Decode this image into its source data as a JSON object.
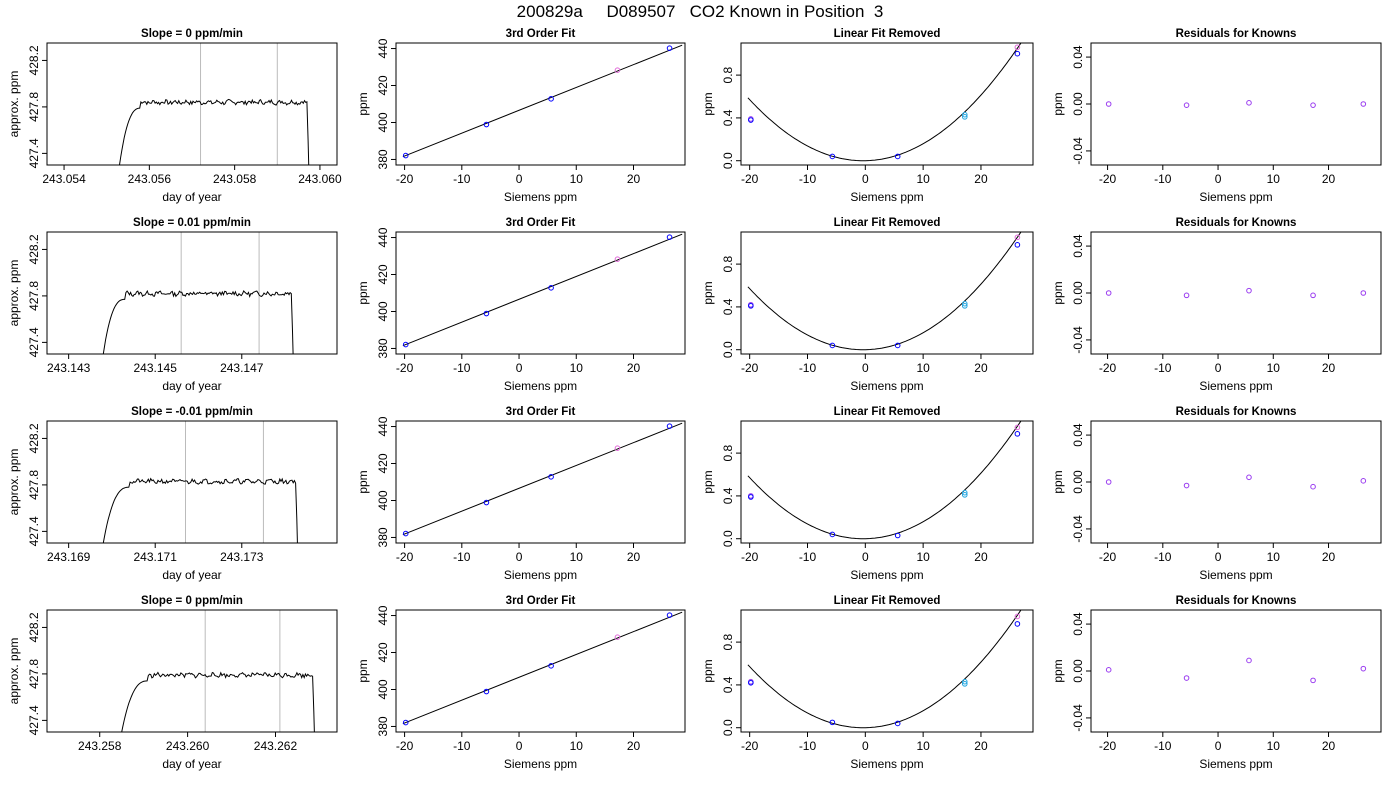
{
  "figure_title": "200829a     D089507   CO2 Known in Position  3",
  "colors": {
    "axis": "#000000",
    "trace": "#000000",
    "vline": "#bbbbbb",
    "point_blue": "#0000ff",
    "point_violet": "#9a3cf0",
    "point_cyan": "#22a6e0",
    "point_pink": "#e06ad8"
  },
  "chart_data": [
    {
      "row": 1,
      "type": "line",
      "title": "Slope =  0  ppm/min",
      "xlabel": "day of year",
      "ylabel": "approx. ppm",
      "xlim": [
        243.0536,
        243.0604
      ],
      "ylim": [
        427.3,
        428.35
      ],
      "xticks": [
        243.054,
        243.056,
        243.058,
        243.06
      ],
      "yticks": [
        427.4,
        427.8,
        428.2
      ],
      "xtick_labels": [
        "243.054",
        "243.056",
        "243.058",
        "243.060"
      ],
      "ytick_labels": [
        "427.4",
        "427.8",
        "428.2"
      ],
      "vlines": [
        243.0572,
        243.059
      ],
      "trace": {
        "x_start": 243.0553,
        "x_rise_end": 243.0558,
        "x_fall": 243.0597,
        "x_end": 243.05975,
        "plateau": 427.84,
        "y_low": 427.3,
        "seed": 7
      }
    },
    {
      "row": 1,
      "type": "scatter",
      "title": "3rd Order Fit",
      "xlabel": "Siemens ppm",
      "ylabel": "ppm",
      "xlim": [
        -21.5,
        29
      ],
      "ylim": [
        377,
        443
      ],
      "xticks": [
        -20,
        -10,
        0,
        10,
        20
      ],
      "yticks": [
        380,
        400,
        420,
        440
      ],
      "xtick_labels": [
        "-20",
        "-10",
        "0",
        "10",
        "20"
      ],
      "ytick_labels": [
        "380",
        "400",
        "420",
        "440"
      ],
      "x": [
        -19.8,
        -5.7,
        5.6,
        17.2,
        26.3
      ],
      "y": [
        382.1,
        398.9,
        412.8,
        428.3,
        440.2
      ],
      "point_colors": [
        "blue",
        "blue",
        "blue",
        "pink",
        "blue"
      ],
      "fit_line": [
        [
          -20.3,
          381.5
        ],
        [
          28.5,
          441.8
        ]
      ]
    },
    {
      "row": 1,
      "type": "scatter",
      "title": "Linear Fit Removed",
      "xlabel": "Siemens ppm",
      "ylabel": "ppm",
      "xlim": [
        -21.5,
        29
      ],
      "ylim": [
        -0.04,
        1.1
      ],
      "xticks": [
        -20,
        -10,
        0,
        10,
        20
      ],
      "yticks": [
        0.0,
        0.4,
        0.8
      ],
      "xtick_labels": [
        "-20",
        "-10",
        "0",
        "10",
        "20"
      ],
      "ytick_labels": [
        "0.0",
        "0.4",
        "0.8"
      ],
      "x": [
        -19.8,
        -19.8,
        -5.7,
        5.6,
        17.2,
        17.2,
        26.3,
        26.3
      ],
      "y": [
        0.39,
        0.38,
        0.04,
        0.04,
        0.43,
        0.41,
        1.06,
        1.0
      ],
      "point_colors": [
        "violet",
        "blue",
        "blue",
        "blue",
        "cyan",
        "cyan",
        "pink",
        "blue"
      ],
      "curve": {
        "a": 0.00148,
        "b": 0.00106,
        "c": 0.0
      }
    },
    {
      "row": 1,
      "type": "scatter",
      "title": "Residuals for Knowns",
      "xlabel": "Siemens ppm",
      "ylabel": "ppm",
      "xlim": [
        -23,
        29.5
      ],
      "ylim": [
        -0.052,
        0.052
      ],
      "xticks": [
        -20,
        -10,
        0,
        10,
        20
      ],
      "yticks": [
        -0.04,
        0.0,
        0.04
      ],
      "xtick_labels": [
        "-20",
        "-10",
        "0",
        "10",
        "20"
      ],
      "ytick_labels": [
        "-0.04",
        "0.00",
        "0.04"
      ],
      "x": [
        -19.8,
        -5.7,
        5.6,
        17.2,
        26.3
      ],
      "y": [
        0.0,
        -0.001,
        0.001,
        -0.001,
        0.0
      ],
      "point_colors": [
        "violet",
        "violet",
        "violet",
        "violet",
        "violet"
      ]
    },
    {
      "row": 2,
      "type": "line",
      "title": "Slope =  0.01  ppm/min",
      "xlabel": "day of year",
      "ylabel": "approx. ppm",
      "xlim": [
        243.1425,
        243.1492
      ],
      "ylim": [
        427.3,
        428.35
      ],
      "xticks": [
        243.143,
        243.145,
        243.147
      ],
      "yticks": [
        427.4,
        427.8,
        428.2
      ],
      "xtick_labels": [
        "243.143",
        "243.145",
        "243.147"
      ],
      "ytick_labels": [
        "427.4",
        "427.8",
        "428.2"
      ],
      "vlines": [
        243.1456,
        243.1474
      ],
      "trace": {
        "x_start": 243.1438,
        "x_rise_end": 243.1443,
        "x_fall": 243.14815,
        "x_end": 243.1482,
        "plateau": 427.82,
        "y_low": 427.3,
        "seed": 13
      }
    },
    {
      "row": 2,
      "type": "scatter",
      "title": "3rd Order Fit",
      "xlabel": "Siemens ppm",
      "ylabel": "ppm",
      "xlim": [
        -21.5,
        29
      ],
      "ylim": [
        377,
        443
      ],
      "xticks": [
        -20,
        -10,
        0,
        10,
        20
      ],
      "yticks": [
        380,
        400,
        420,
        440
      ],
      "xtick_labels": [
        "-20",
        "-10",
        "0",
        "10",
        "20"
      ],
      "ytick_labels": [
        "380",
        "400",
        "420",
        "440"
      ],
      "x": [
        -19.8,
        -5.7,
        5.6,
        17.2,
        26.3
      ],
      "y": [
        382.1,
        398.9,
        412.8,
        428.3,
        440.2
      ],
      "point_colors": [
        "blue",
        "blue",
        "blue",
        "pink",
        "blue"
      ],
      "fit_line": [
        [
          -20.3,
          381.5
        ],
        [
          28.5,
          441.8
        ]
      ]
    },
    {
      "row": 2,
      "type": "scatter",
      "title": "Linear Fit Removed",
      "xlabel": "Siemens ppm",
      "ylabel": "ppm",
      "xlim": [
        -21.5,
        29
      ],
      "ylim": [
        -0.04,
        1.1
      ],
      "xticks": [
        -20,
        -10,
        0,
        10,
        20
      ],
      "yticks": [
        0.0,
        0.4,
        0.8
      ],
      "xtick_labels": [
        "-20",
        "-10",
        "0",
        "10",
        "20"
      ],
      "ytick_labels": [
        "0.0",
        "0.4",
        "0.8"
      ],
      "x": [
        -19.8,
        -19.8,
        -5.7,
        5.6,
        17.2,
        17.2,
        26.3,
        26.3
      ],
      "y": [
        0.42,
        0.41,
        0.04,
        0.04,
        0.43,
        0.41,
        1.05,
        0.98
      ],
      "point_colors": [
        "violet",
        "blue",
        "blue",
        "blue",
        "cyan",
        "cyan",
        "pink",
        "blue"
      ],
      "curve": {
        "a": 0.00148,
        "b": 0.00106,
        "c": 0.0
      }
    },
    {
      "row": 2,
      "type": "scatter",
      "title": "Residuals for Knowns",
      "xlabel": "Siemens ppm",
      "ylabel": "ppm",
      "xlim": [
        -23,
        29.5
      ],
      "ylim": [
        -0.052,
        0.052
      ],
      "xticks": [
        -20,
        -10,
        0,
        10,
        20
      ],
      "yticks": [
        -0.04,
        0.0,
        0.04
      ],
      "xtick_labels": [
        "-20",
        "-10",
        "0",
        "10",
        "20"
      ],
      "ytick_labels": [
        "-0.04",
        "0.00",
        "0.04"
      ],
      "x": [
        -19.8,
        -5.7,
        5.6,
        17.2,
        26.3
      ],
      "y": [
        0.0,
        -0.002,
        0.002,
        -0.002,
        0.0
      ],
      "point_colors": [
        "violet",
        "violet",
        "violet",
        "violet",
        "violet"
      ]
    },
    {
      "row": 3,
      "type": "line",
      "title": "Slope =  -0.01  ppm/min",
      "xlabel": "day of year",
      "ylabel": "approx. ppm",
      "xlim": [
        243.1685,
        243.1752
      ],
      "ylim": [
        427.3,
        428.35
      ],
      "xticks": [
        243.169,
        243.171,
        243.173
      ],
      "yticks": [
        427.4,
        427.8,
        428.2
      ],
      "xtick_labels": [
        "243.169",
        "243.171",
        "243.173"
      ],
      "ytick_labels": [
        "427.4",
        "427.8",
        "428.2"
      ],
      "vlines": [
        243.1717,
        243.1735
      ],
      "trace": {
        "x_start": 243.1698,
        "x_rise_end": 243.1704,
        "x_fall": 243.17425,
        "x_end": 243.1743,
        "plateau": 427.83,
        "y_low": 427.3,
        "seed": 21
      }
    },
    {
      "row": 3,
      "type": "scatter",
      "title": "3rd Order Fit",
      "xlabel": "Siemens ppm",
      "ylabel": "ppm",
      "xlim": [
        -21.5,
        29
      ],
      "ylim": [
        377,
        443
      ],
      "xticks": [
        -20,
        -10,
        0,
        10,
        20
      ],
      "yticks": [
        380,
        400,
        420,
        440
      ],
      "xtick_labels": [
        "-20",
        "-10",
        "0",
        "10",
        "20"
      ],
      "ytick_labels": [
        "380",
        "400",
        "420",
        "440"
      ],
      "x": [
        -19.8,
        -5.7,
        5.6,
        17.2,
        26.3
      ],
      "y": [
        382.1,
        398.9,
        412.8,
        428.3,
        440.2
      ],
      "point_colors": [
        "blue",
        "blue",
        "blue",
        "pink",
        "blue"
      ],
      "fit_line": [
        [
          -20.3,
          381.5
        ],
        [
          28.5,
          441.8
        ]
      ]
    },
    {
      "row": 3,
      "type": "scatter",
      "title": "Linear Fit Removed",
      "xlabel": "Siemens ppm",
      "ylabel": "ppm",
      "xlim": [
        -21.5,
        29
      ],
      "ylim": [
        -0.04,
        1.1
      ],
      "xticks": [
        -20,
        -10,
        0,
        10,
        20
      ],
      "yticks": [
        0.0,
        0.4,
        0.8
      ],
      "xtick_labels": [
        "-20",
        "-10",
        "0",
        "10",
        "20"
      ],
      "ytick_labels": [
        "0.0",
        "0.4",
        "0.8"
      ],
      "x": [
        -19.8,
        -19.8,
        -5.7,
        5.6,
        17.2,
        17.2,
        26.3,
        26.3
      ],
      "y": [
        0.4,
        0.39,
        0.04,
        0.03,
        0.43,
        0.41,
        1.04,
        0.98
      ],
      "point_colors": [
        "violet",
        "blue",
        "blue",
        "blue",
        "cyan",
        "cyan",
        "pink",
        "blue"
      ],
      "curve": {
        "a": 0.00148,
        "b": 0.00106,
        "c": 0.0
      }
    },
    {
      "row": 3,
      "type": "scatter",
      "title": "Residuals for Knowns",
      "xlabel": "Siemens ppm",
      "ylabel": "ppm",
      "xlim": [
        -23,
        29.5
      ],
      "ylim": [
        -0.052,
        0.052
      ],
      "xticks": [
        -20,
        -10,
        0,
        10,
        20
      ],
      "yticks": [
        -0.04,
        0.0,
        0.04
      ],
      "xtick_labels": [
        "-20",
        "-10",
        "0",
        "10",
        "20"
      ],
      "ytick_labels": [
        "-0.04",
        "0.00",
        "0.04"
      ],
      "x": [
        -19.8,
        -5.7,
        5.6,
        17.2,
        26.3
      ],
      "y": [
        0.0,
        -0.003,
        0.004,
        -0.004,
        0.001
      ],
      "point_colors": [
        "violet",
        "violet",
        "violet",
        "violet",
        "violet"
      ]
    },
    {
      "row": 4,
      "type": "line",
      "title": "Slope =  0  ppm/min",
      "xlabel": "day of year",
      "ylabel": "approx. ppm",
      "xlim": [
        243.2568,
        243.2634
      ],
      "ylim": [
        427.3,
        428.35
      ],
      "xticks": [
        243.258,
        243.26,
        243.262
      ],
      "yticks": [
        427.4,
        427.8,
        428.2
      ],
      "xtick_labels": [
        "243.258",
        "243.260",
        "243.262"
      ],
      "ytick_labels": [
        "427.4",
        "427.8",
        "428.2"
      ],
      "vlines": [
        243.2604,
        243.2621
      ],
      "trace": {
        "x_start": 243.2585,
        "x_rise_end": 243.2591,
        "x_fall": 243.26285,
        "x_end": 243.2629,
        "plateau": 427.79,
        "y_low": 427.3,
        "seed": 33
      }
    },
    {
      "row": 4,
      "type": "scatter",
      "title": "3rd Order Fit",
      "xlabel": "Siemens ppm",
      "ylabel": "ppm",
      "xlim": [
        -21.5,
        29
      ],
      "ylim": [
        377,
        443
      ],
      "xticks": [
        -20,
        -10,
        0,
        10,
        20
      ],
      "yticks": [
        380,
        400,
        420,
        440
      ],
      "xtick_labels": [
        "-20",
        "-10",
        "0",
        "10",
        "20"
      ],
      "ytick_labels": [
        "380",
        "400",
        "420",
        "440"
      ],
      "x": [
        -19.8,
        -5.7,
        5.6,
        17.2,
        26.3
      ],
      "y": [
        382.1,
        398.9,
        412.8,
        428.3,
        440.2
      ],
      "point_colors": [
        "blue",
        "blue",
        "blue",
        "pink",
        "blue"
      ],
      "fit_line": [
        [
          -20.3,
          381.5
        ],
        [
          28.5,
          441.8
        ]
      ]
    },
    {
      "row": 4,
      "type": "scatter",
      "title": "Linear Fit Removed",
      "xlabel": "Siemens ppm",
      "ylabel": "ppm",
      "xlim": [
        -21.5,
        29
      ],
      "ylim": [
        -0.04,
        1.1
      ],
      "xticks": [
        -20,
        -10,
        0,
        10,
        20
      ],
      "yticks": [
        0.0,
        0.4,
        0.8
      ],
      "xtick_labels": [
        "-20",
        "-10",
        "0",
        "10",
        "20"
      ],
      "ytick_labels": [
        "0.0",
        "0.4",
        "0.8"
      ],
      "x": [
        -19.8,
        -19.8,
        -5.7,
        5.6,
        17.2,
        17.2,
        26.3,
        26.3
      ],
      "y": [
        0.43,
        0.42,
        0.05,
        0.04,
        0.43,
        0.41,
        1.04,
        0.97
      ],
      "point_colors": [
        "violet",
        "blue",
        "blue",
        "blue",
        "cyan",
        "cyan",
        "pink",
        "blue"
      ],
      "curve": {
        "a": 0.00148,
        "b": 0.00106,
        "c": 0.0
      }
    },
    {
      "row": 4,
      "type": "scatter",
      "title": "Residuals for Knowns",
      "xlabel": "Siemens ppm",
      "ylabel": "ppm",
      "xlim": [
        -23,
        29.5
      ],
      "ylim": [
        -0.052,
        0.052
      ],
      "xticks": [
        -20,
        -10,
        0,
        10,
        20
      ],
      "yticks": [
        -0.04,
        0.0,
        0.04
      ],
      "xtick_labels": [
        "-20",
        "-10",
        "0",
        "10",
        "20"
      ],
      "ytick_labels": [
        "-0.04",
        "0.00",
        "0.04"
      ],
      "x": [
        -19.8,
        -5.7,
        5.6,
        17.2,
        26.3
      ],
      "y": [
        0.001,
        -0.006,
        0.009,
        -0.008,
        0.002
      ],
      "point_colors": [
        "violet",
        "violet",
        "violet",
        "violet",
        "violet"
      ]
    }
  ]
}
